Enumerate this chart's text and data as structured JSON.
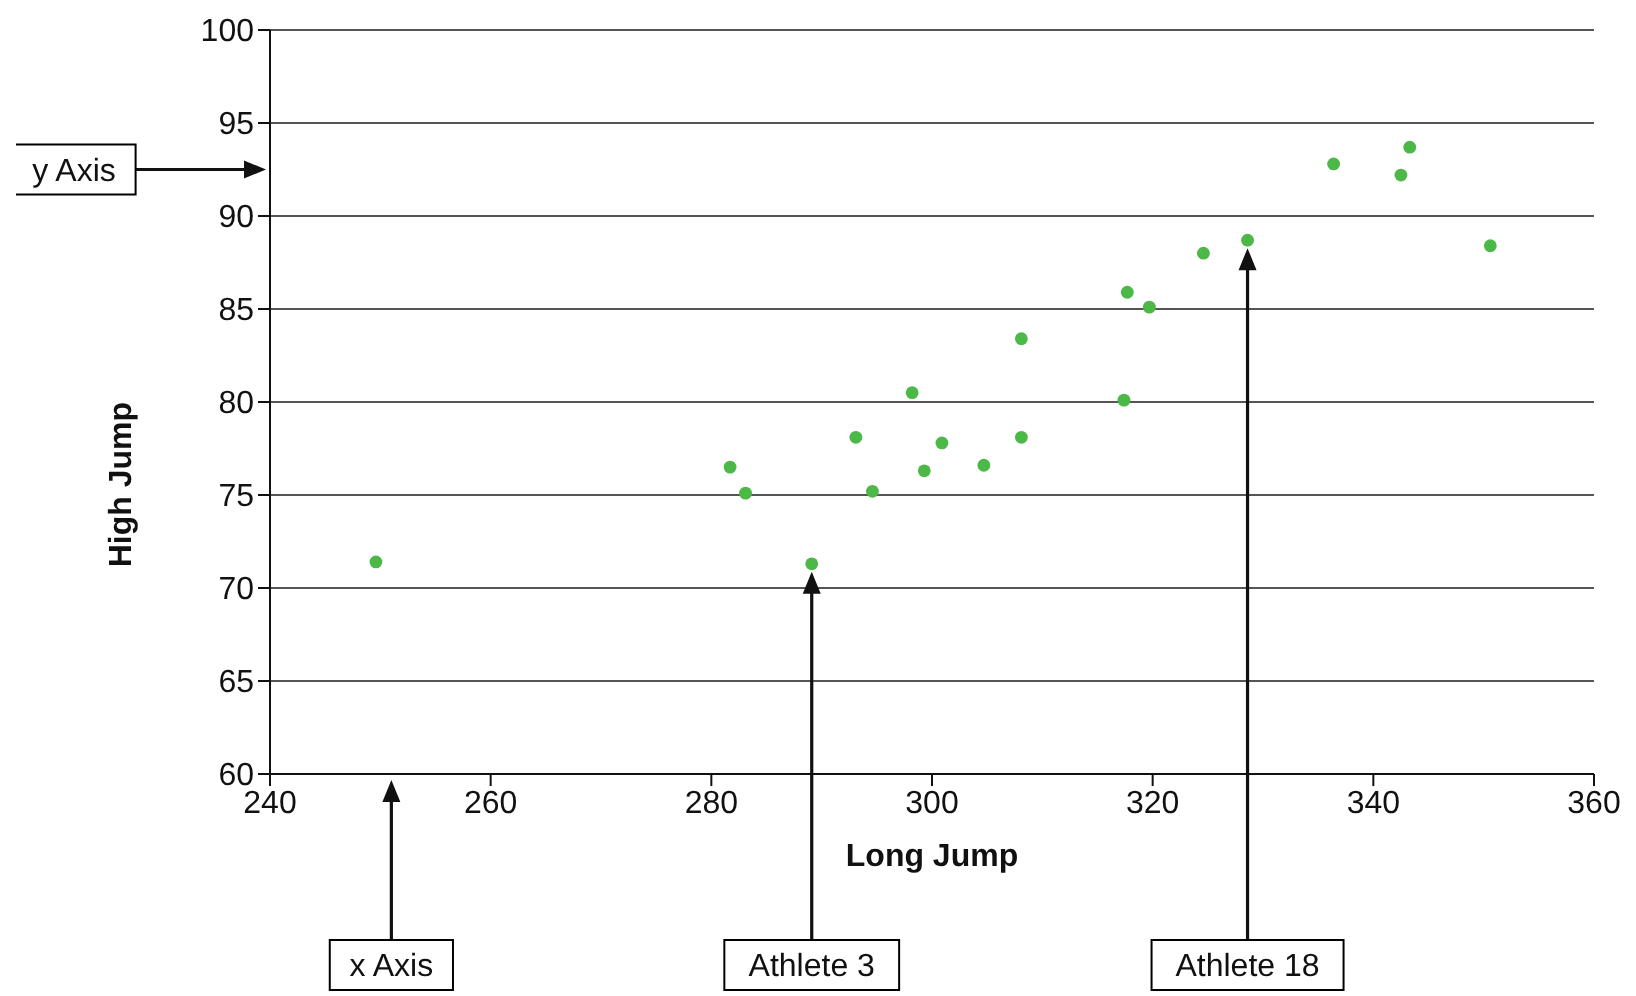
{
  "chart_data": {
    "type": "scatter",
    "xlabel": "Long Jump",
    "ylabel": "High Jump",
    "x": [
      249.6,
      281.7,
      283.1,
      289.1,
      293.1,
      294.6,
      298.2,
      299.3,
      300.9,
      304.7,
      308.1,
      308.1,
      317.4,
      317.7,
      319.7,
      324.6,
      328.6,
      336.4,
      342.5,
      343.3,
      350.6
    ],
    "values": [
      71.4,
      76.5,
      75.1,
      71.3,
      78.1,
      75.2,
      80.5,
      76.3,
      77.8,
      76.6,
      83.4,
      78.1,
      80.1,
      85.9,
      85.1,
      88.0,
      88.7,
      92.8,
      92.2,
      93.7,
      88.4
    ],
    "color": "#4cb848",
    "marker": "circle",
    "xlim": [
      240,
      360
    ],
    "xticks": [
      240,
      260,
      280,
      300,
      320,
      340,
      360
    ],
    "ylim": [
      60,
      100
    ],
    "yticks": [
      60,
      65,
      70,
      75,
      80,
      85,
      90,
      95,
      100
    ],
    "grid": "y",
    "annotations": [
      "y Axis",
      "x Axis",
      "Athlete 3",
      "Athlete 18"
    ]
  }
}
